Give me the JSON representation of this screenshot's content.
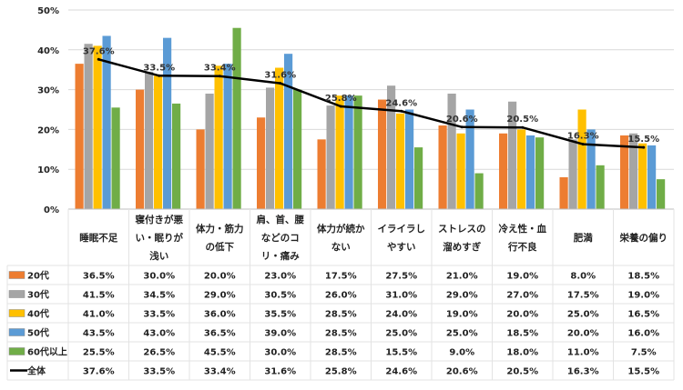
{
  "chart_data": {
    "type": "bar",
    "ylim": [
      0,
      50
    ],
    "yticks": [
      "0%",
      "10%",
      "20%",
      "30%",
      "40%",
      "50%"
    ],
    "grid": true,
    "legend": "table-left",
    "categories": [
      [
        "睡眠不足"
      ],
      [
        "寝付きが悪",
        "い・眠りが",
        "浅い"
      ],
      [
        "体力・筋力",
        "の低下"
      ],
      [
        "肩、首、腰",
        "などのコ",
        "リ・痛み"
      ],
      [
        "体力が続か",
        "ない"
      ],
      [
        "イライラし",
        "やすい"
      ],
      [
        "ストレスの",
        "溜めすぎ"
      ],
      [
        "冷え性・血",
        "行不良"
      ],
      [
        "肥満"
      ],
      [
        "栄養の偏り"
      ]
    ],
    "series": [
      {
        "name": "20代",
        "color": "#ED7D31",
        "values": [
          36.5,
          30.0,
          20.0,
          23.0,
          17.5,
          27.5,
          21.0,
          19.0,
          8.0,
          18.5
        ]
      },
      {
        "name": "30代",
        "color": "#A5A5A5",
        "values": [
          41.5,
          34.5,
          29.0,
          30.5,
          26.0,
          31.0,
          29.0,
          27.0,
          17.5,
          19.0
        ]
      },
      {
        "name": "40代",
        "color": "#FFC000",
        "values": [
          41.0,
          33.5,
          36.0,
          35.5,
          28.5,
          24.0,
          19.0,
          20.0,
          25.0,
          16.5
        ]
      },
      {
        "name": "50代",
        "color": "#5B9BD5",
        "values": [
          43.5,
          43.0,
          36.5,
          39.0,
          28.5,
          25.0,
          25.0,
          18.5,
          20.0,
          16.0
        ]
      },
      {
        "name": "60代以上",
        "color": "#70AD47",
        "values": [
          25.5,
          26.5,
          45.5,
          30.0,
          28.5,
          15.5,
          9.0,
          18.0,
          11.0,
          7.5
        ]
      }
    ],
    "line": {
      "name": "全体",
      "color": "#000000",
      "values": [
        37.6,
        33.5,
        33.4,
        31.6,
        25.8,
        24.6,
        20.6,
        20.5,
        16.3,
        15.5
      ]
    }
  }
}
